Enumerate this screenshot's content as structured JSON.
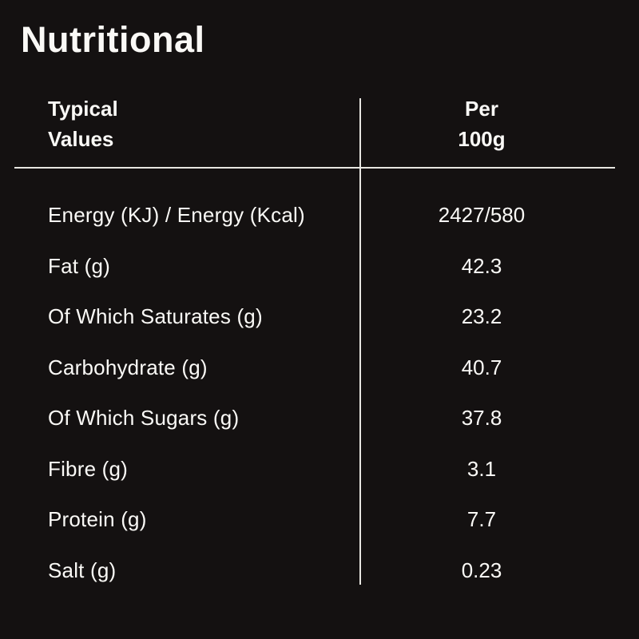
{
  "title": "Nutritional",
  "table": {
    "header": {
      "col1": "Typical\nValues",
      "col2": "Per\n100g"
    },
    "rows": [
      {
        "label": "Energy (KJ) / Energy (Kcal)",
        "value": "2427/580"
      },
      {
        "label": "Fat (g)",
        "value": "42.3"
      },
      {
        "label": "Of Which Saturates (g)",
        "value": "23.2"
      },
      {
        "label": "Carbohydrate (g)",
        "value": "40.7"
      },
      {
        "label": "Of Which Sugars (g)",
        "value": "37.8"
      },
      {
        "label": "Fibre (g)",
        "value": "3.1"
      },
      {
        "label": "Protein (g)",
        "value": "7.7"
      },
      {
        "label": "Salt (g)",
        "value": "0.23"
      }
    ]
  },
  "chart_data": {
    "type": "table",
    "title": "Nutritional",
    "columns": [
      "Typical Values",
      "Per 100g"
    ],
    "rows": [
      [
        "Energy (KJ) / Energy (Kcal)",
        "2427/580"
      ],
      [
        "Fat (g)",
        "42.3"
      ],
      [
        "Of Which Saturates (g)",
        "23.2"
      ],
      [
        "Carbohydrate (g)",
        "40.7"
      ],
      [
        "Of Which Sugars (g)",
        "37.8"
      ],
      [
        "Fibre (g)",
        "3.1"
      ],
      [
        "Protein (g)",
        "7.7"
      ],
      [
        "Salt (g)",
        "0.23"
      ]
    ]
  },
  "colors": {
    "background": "#141111",
    "text": "#faf9f6",
    "divider": "#e7e6e1"
  }
}
